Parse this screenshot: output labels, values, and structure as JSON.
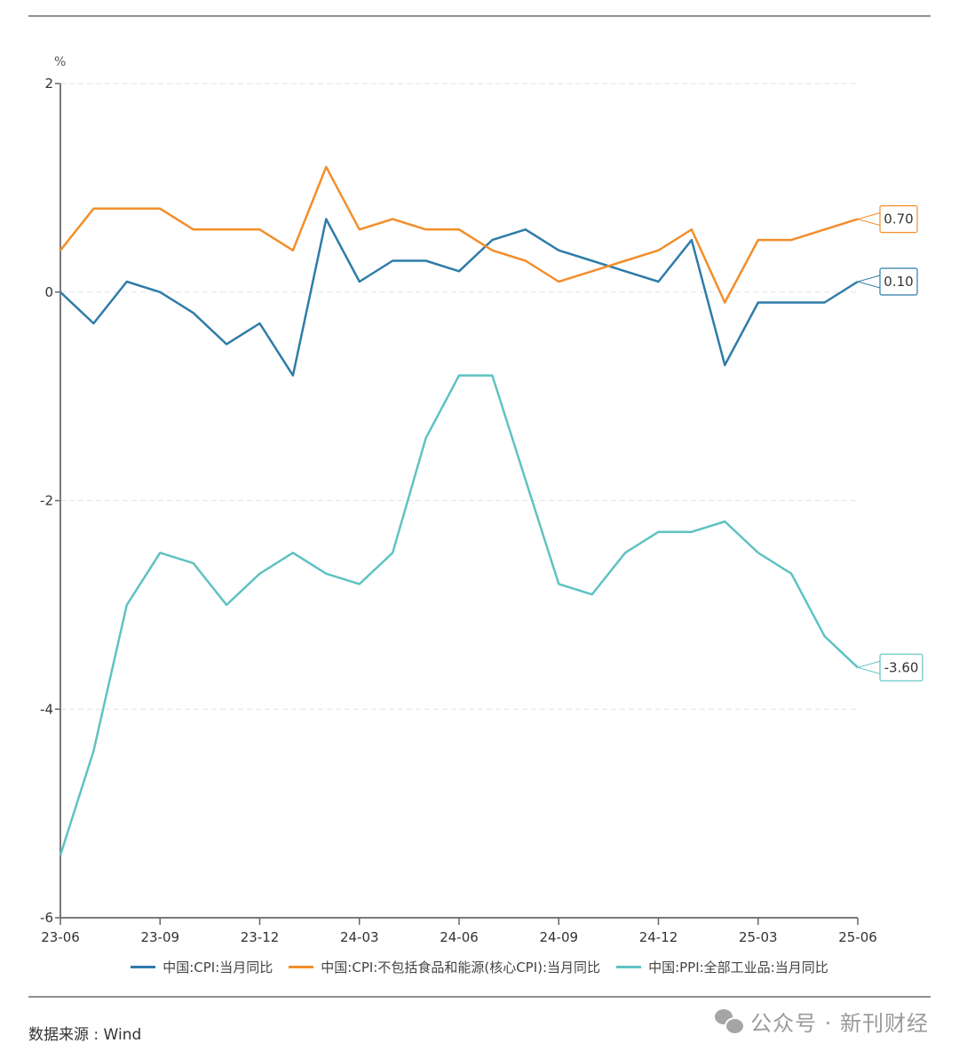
{
  "chart_data": {
    "type": "line",
    "title": "",
    "unit_label": "%",
    "xlabel": "",
    "ylabel": "%",
    "ylim": [
      -6,
      2
    ],
    "yticks": [
      2,
      0,
      -2,
      -4,
      -6
    ],
    "grid": true,
    "x": [
      "23-06",
      "23-07",
      "23-08",
      "23-09",
      "23-10",
      "23-11",
      "23-12",
      "24-01",
      "24-02",
      "24-03",
      "24-04",
      "24-05",
      "24-06",
      "24-07",
      "24-08",
      "24-09",
      "24-10",
      "24-11",
      "24-12",
      "25-01",
      "25-02",
      "25-03",
      "25-04",
      "25-05",
      "25-06"
    ],
    "xticks": [
      "23-06",
      "23-09",
      "23-12",
      "24-03",
      "24-06",
      "24-09",
      "24-12",
      "25-03",
      "25-06"
    ],
    "legend_position": "bottom",
    "series": [
      {
        "name": "中国:CPI:当月同比",
        "color": "#2e7ca8",
        "values": [
          0.0,
          -0.3,
          0.1,
          0.0,
          -0.2,
          -0.5,
          -0.3,
          -0.8,
          0.7,
          0.1,
          0.3,
          0.3,
          0.2,
          0.5,
          0.6,
          0.4,
          0.3,
          0.2,
          0.1,
          0.5,
          -0.7,
          -0.1,
          -0.1,
          -0.1,
          0.1
        ],
        "end_label": "0.10"
      },
      {
        "name": "中国:CPI:不包括食品和能源(核心CPI):当月同比",
        "color": "#f28e2b",
        "values": [
          0.4,
          0.8,
          0.8,
          0.8,
          0.6,
          0.6,
          0.6,
          0.4,
          1.2,
          0.6,
          0.7,
          0.6,
          0.6,
          0.4,
          0.3,
          0.1,
          0.2,
          0.3,
          0.4,
          0.6,
          -0.1,
          0.5,
          0.5,
          0.6,
          0.7
        ],
        "end_label": "0.70"
      },
      {
        "name": "中国:PPI:全部工业品:当月同比",
        "color": "#5fc2c2",
        "values": [
          -5.4,
          -4.4,
          -3.0,
          -2.5,
          -2.6,
          -3.0,
          -2.7,
          -2.5,
          -2.7,
          -2.8,
          -2.5,
          -1.4,
          -0.8,
          -0.8,
          -1.8,
          -2.8,
          -2.9,
          -2.5,
          -2.3,
          -2.3,
          -2.2,
          -2.5,
          -2.7,
          -3.3,
          -3.6
        ],
        "end_label": "-3.60"
      }
    ]
  },
  "footer": {
    "source": "数据来源 : Wind",
    "watermark": "公众号 · 新刊财经"
  }
}
